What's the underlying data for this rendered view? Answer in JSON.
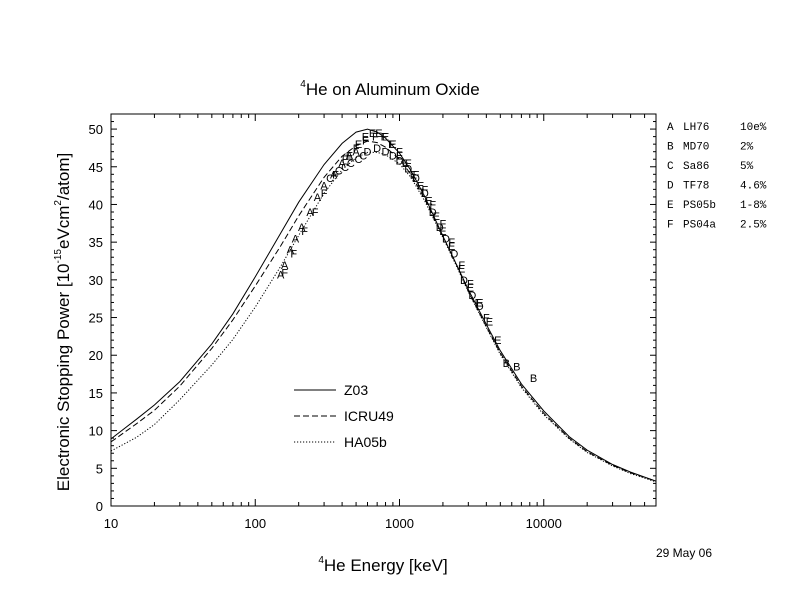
{
  "chart_data": {
    "type": "line",
    "title": {
      "sup": "4",
      "text": "He on Aluminum Oxide"
    },
    "xlabel": {
      "sup": "4",
      "text": "He Energy [keV]"
    },
    "ylabel": {
      "pre": "Electronic Stopping Power [10",
      "sup1": "-15",
      "mid": "eVcm",
      "sup2": "2",
      "post": "/atom]"
    },
    "x_scale": "log",
    "xlim": [
      10,
      60000
    ],
    "ylim": [
      0,
      52
    ],
    "x_ticks": [
      {
        "value": 10,
        "label": "10"
      },
      {
        "value": 100,
        "label": "100"
      },
      {
        "value": 1000,
        "label": "1000"
      },
      {
        "value": 10000,
        "label": "10000"
      }
    ],
    "y_ticks": [
      {
        "value": 0,
        "label": "0"
      },
      {
        "value": 5,
        "label": "5"
      },
      {
        "value": 10,
        "label": "10"
      },
      {
        "value": 15,
        "label": "15"
      },
      {
        "value": 20,
        "label": "20"
      },
      {
        "value": 25,
        "label": "25"
      },
      {
        "value": 30,
        "label": "30"
      },
      {
        "value": 35,
        "label": "35"
      },
      {
        "value": 40,
        "label": "40"
      },
      {
        "value": 45,
        "label": "45"
      },
      {
        "value": 50,
        "label": "50"
      }
    ],
    "date_label": "29 May 06",
    "legend_position": "lower-left",
    "series": [
      {
        "name": "Z03",
        "style": "solid",
        "x": [
          10,
          15,
          20,
          30,
          50,
          70,
          100,
          150,
          200,
          300,
          400,
          500,
          600,
          700,
          800,
          1000,
          1200,
          1500,
          2000,
          2500,
          3000,
          4000,
          5000,
          7000,
          10000,
          15000,
          20000,
          30000,
          40000,
          60000
        ],
        "y": [
          8.9,
          11.5,
          13.4,
          16.5,
          21.5,
          25.5,
          30.4,
          36.2,
          40.3,
          45.3,
          48.1,
          49.6,
          50.0,
          49.6,
          48.8,
          46.8,
          44.5,
          41.0,
          35.8,
          31.9,
          28.7,
          24.1,
          20.6,
          16.2,
          12.6,
          9.2,
          7.4,
          5.5,
          4.5,
          3.3
        ]
      },
      {
        "name": "ICRU49",
        "style": "dashed",
        "x": [
          10,
          15,
          20,
          30,
          50,
          70,
          100,
          150,
          200,
          300,
          400,
          500,
          600,
          700,
          800,
          1000,
          1200,
          1500,
          2000,
          2500,
          3000,
          4000,
          5000,
          7000,
          10000,
          15000,
          20000,
          30000,
          40000,
          60000
        ],
        "y": [
          8.5,
          10.9,
          12.7,
          15.9,
          20.9,
          24.7,
          29.2,
          34.5,
          38.5,
          43.6,
          46.4,
          47.8,
          48.4,
          48.2,
          47.6,
          46.0,
          44.0,
          40.7,
          35.8,
          31.9,
          28.5,
          23.8,
          20.3,
          15.9,
          12.3,
          9.0,
          7.2,
          5.4,
          4.4,
          3.3
        ]
      },
      {
        "name": "HA05b",
        "style": "dotted",
        "x": [
          10,
          15,
          20,
          30,
          50,
          70,
          100,
          150,
          200,
          300,
          400,
          500,
          600,
          700,
          800,
          1000,
          1200,
          1500,
          2000,
          2500,
          3000,
          4000,
          5000,
          7000,
          10000,
          15000,
          20000,
          30000,
          40000,
          60000
        ],
        "y": [
          7.3,
          9.1,
          10.8,
          14.1,
          18.7,
          22.1,
          26.4,
          31.8,
          35.9,
          41.5,
          44.6,
          46.2,
          46.9,
          46.9,
          46.6,
          45.4,
          43.6,
          40.4,
          35.6,
          31.7,
          28.4,
          23.7,
          20.1,
          15.7,
          12.1,
          8.9,
          7.1,
          5.3,
          4.3,
          3.2
        ]
      }
    ],
    "measurements": [
      {
        "letter": "A",
        "name": "LH76",
        "uncertainty": "10e%",
        "points": [
          [
            150,
            30.7
          ],
          [
            160,
            32.0
          ],
          [
            175,
            34.0
          ],
          [
            190,
            35.5
          ],
          [
            210,
            37.0
          ],
          [
            240,
            39.0
          ],
          [
            270,
            41.0
          ],
          [
            300,
            42.5
          ],
          [
            350,
            44.0
          ],
          [
            400,
            45.5
          ],
          [
            450,
            46.5
          ],
          [
            500,
            47.0
          ]
        ]
      },
      {
        "letter": "B",
        "name": "MD70",
        "uncertainty": "2%",
        "points": [
          [
            5500,
            19.0
          ],
          [
            6500,
            18.5
          ],
          [
            8500,
            17.0
          ]
        ]
      },
      {
        "letter": "C",
        "name": "Sa86",
        "uncertainty": "5%",
        "points": [
          [
            330,
            43.5
          ],
          [
            380,
            44.5
          ],
          [
            420,
            45.0
          ],
          [
            460,
            45.5
          ],
          [
            520,
            46.0
          ],
          [
            560,
            46.5
          ]
        ]
      },
      {
        "letter": "D",
        "name": "TF78",
        "uncertainty": "4.6%",
        "points": [
          [
            600,
            47.0
          ],
          [
            700,
            47.5
          ],
          [
            800,
            47.0
          ],
          [
            900,
            46.5
          ],
          [
            1000,
            45.8
          ],
          [
            1150,
            44.8
          ],
          [
            1300,
            43.5
          ],
          [
            1500,
            41.5
          ],
          [
            1700,
            39.0
          ],
          [
            1900,
            37.0
          ],
          [
            2100,
            35.5
          ],
          [
            2400,
            33.5
          ],
          [
            2800,
            30.0
          ],
          [
            3200,
            28.0
          ],
          [
            3600,
            26.5
          ]
        ]
      },
      {
        "letter": "E",
        "name": "PS05b",
        "uncertainty": "1-8%",
        "points": [
          [
            450,
            46.5
          ],
          [
            520,
            48.0
          ],
          [
            580,
            49.0
          ],
          [
            650,
            49.5
          ],
          [
            720,
            49.5
          ],
          [
            800,
            49.0
          ],
          [
            900,
            48.0
          ],
          [
            1000,
            46.5
          ],
          [
            1100,
            45.5
          ],
          [
            1250,
            44.0
          ],
          [
            1400,
            42.5
          ],
          [
            1600,
            40.5
          ],
          [
            1800,
            38.5
          ],
          [
            2000,
            36.5
          ],
          [
            2300,
            34.5
          ],
          [
            2700,
            31.5
          ],
          [
            3100,
            29.0
          ],
          [
            3600,
            27.0
          ],
          [
            4200,
            24.5
          ],
          [
            4800,
            22.0
          ]
        ]
      },
      {
        "letter": "F",
        "name": "PS04a",
        "uncertainty": "2.5%",
        "points": [
          [
            160,
            31.0
          ],
          [
            185,
            33.5
          ],
          [
            220,
            36.5
          ],
          [
            260,
            39.0
          ],
          [
            300,
            41.5
          ],
          [
            360,
            44.0
          ],
          [
            420,
            46.0
          ],
          [
            500,
            47.5
          ],
          [
            580,
            48.5
          ],
          [
            680,
            49.0
          ],
          [
            780,
            49.0
          ],
          [
            880,
            48.0
          ],
          [
            1000,
            47.0
          ],
          [
            1150,
            45.5
          ],
          [
            1300,
            44.0
          ],
          [
            1500,
            42.0
          ],
          [
            1700,
            40.0
          ],
          [
            2000,
            37.5
          ],
          [
            2300,
            35.0
          ],
          [
            2700,
            32.0
          ],
          [
            3100,
            29.5
          ],
          [
            3500,
            27.0
          ],
          [
            4000,
            25.0
          ]
        ]
      }
    ]
  }
}
